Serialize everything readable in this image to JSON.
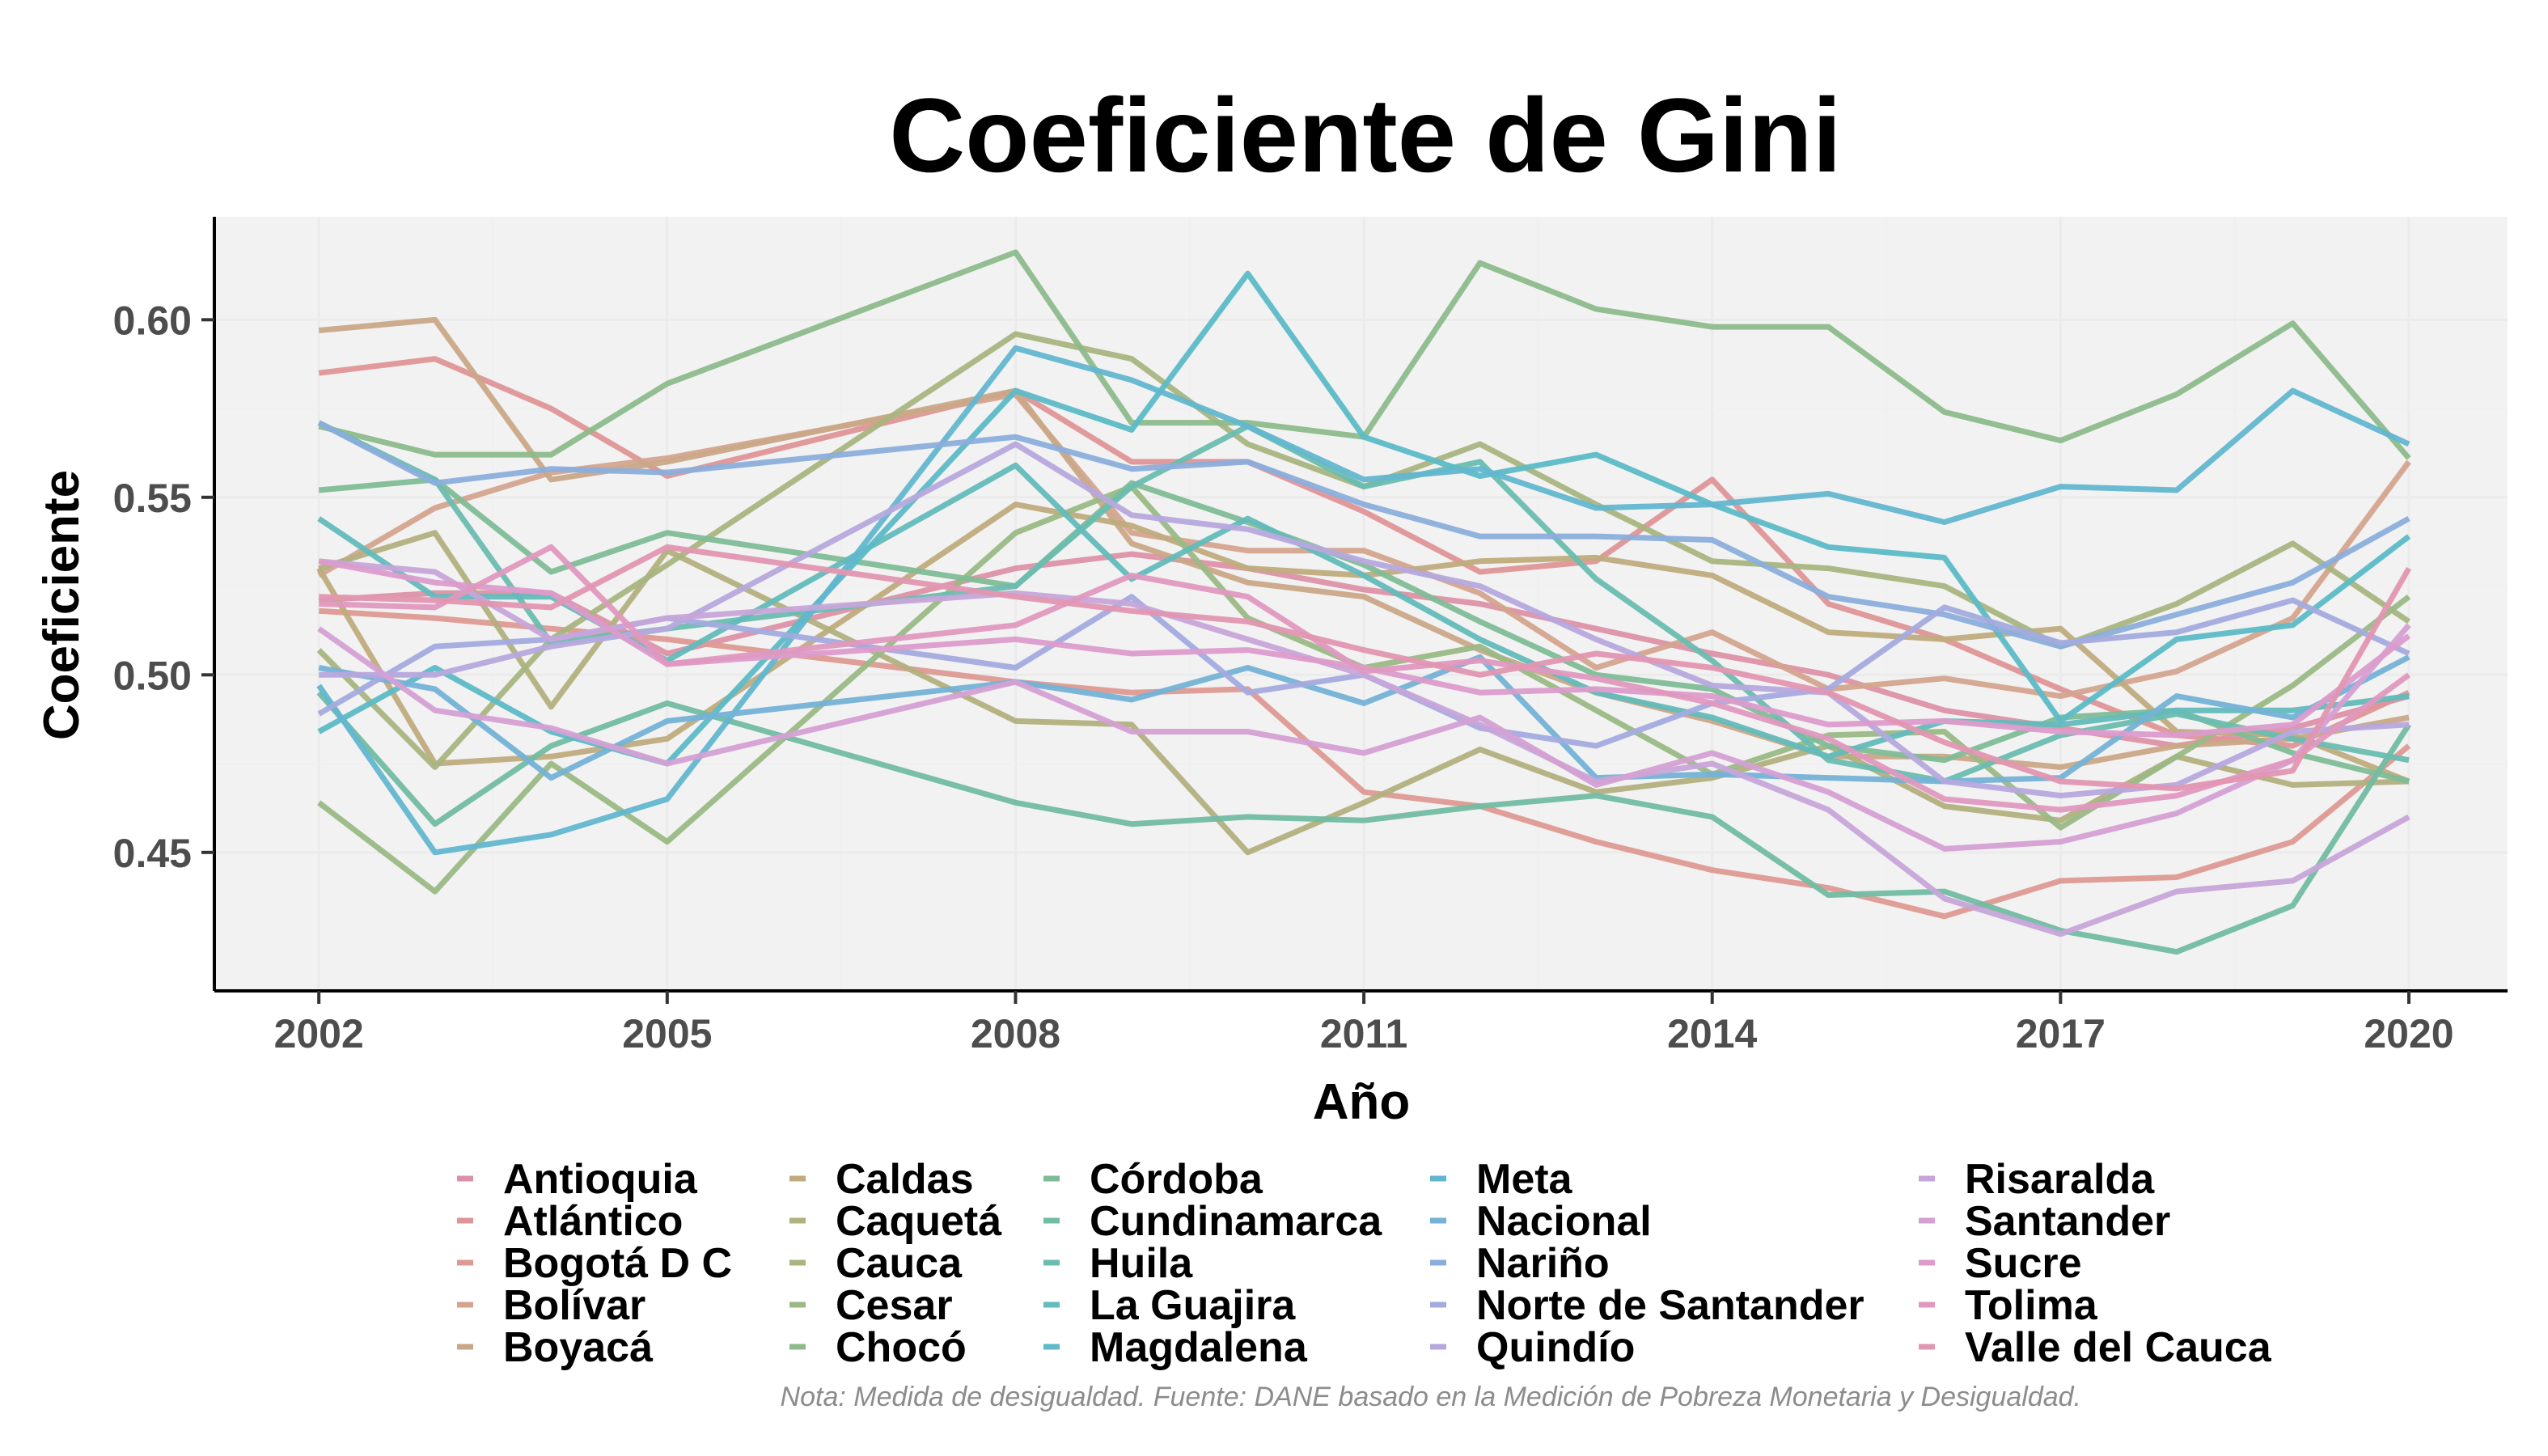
{
  "chart_data": {
    "type": "line",
    "title": "Coeficiente de Gini",
    "xlabel": "Año",
    "ylabel": "Coeficiente",
    "caption": "Nota: Medida de desigualdad. Fuente: DANE basado en la Medición de Pobreza Monetaria y Desigualdad.",
    "xlim": [
      2001.1,
      2020.85
    ],
    "ylim": [
      0.411,
      0.629
    ],
    "x_ticks": [
      2002,
      2005,
      2008,
      2011,
      2014,
      2017,
      2020
    ],
    "x_tick_labels": [
      "2002",
      "2005",
      "2008",
      "2011",
      "2014",
      "2017",
      "2020"
    ],
    "y_ticks": [
      0.45,
      0.5,
      0.55,
      0.6
    ],
    "y_tick_labels": [
      "0.45",
      "0.50",
      "0.55",
      "0.60"
    ],
    "grid": true,
    "legend_position": "bottom",
    "x": [
      2002,
      2003,
      2004,
      2005,
      2008,
      2009,
      2010,
      2011,
      2012,
      2013,
      2014,
      2015,
      2016,
      2017,
      2018,
      2019,
      2020
    ],
    "series": [
      {
        "name": "Antioquia",
        "color": "#dc91a6",
        "values": [
          0.521,
          0.523,
          0.523,
          0.506,
          0.53,
          0.534,
          0.53,
          0.524,
          0.52,
          0.513,
          0.506,
          0.5,
          0.49,
          0.485,
          0.48,
          0.485,
          0.494
        ]
      },
      {
        "name": "Atlántico",
        "color": "#df9597",
        "values": [
          0.585,
          0.589,
          0.575,
          0.556,
          0.58,
          0.56,
          0.56,
          0.546,
          0.529,
          0.532,
          0.555,
          0.52,
          0.51,
          0.496,
          0.483,
          0.48,
          0.495
        ]
      },
      {
        "name": "Bogotá D C",
        "color": "#dd9a92",
        "values": [
          0.518,
          0.516,
          0.513,
          0.51,
          0.498,
          0.495,
          0.496,
          0.467,
          0.463,
          0.453,
          0.445,
          0.44,
          0.432,
          0.442,
          0.443,
          0.453,
          0.48
        ]
      },
      {
        "name": "Bolívar",
        "color": "#d4a48f",
        "values": [
          0.528,
          0.547,
          0.557,
          0.561,
          0.579,
          0.54,
          0.535,
          0.535,
          0.523,
          0.502,
          0.512,
          0.496,
          0.499,
          0.494,
          0.501,
          0.516,
          0.56
        ]
      },
      {
        "name": "Boyacá",
        "color": "#c9a887",
        "values": [
          0.597,
          0.6,
          0.555,
          0.56,
          0.58,
          0.537,
          0.526,
          0.522,
          0.507,
          0.495,
          0.487,
          0.477,
          0.477,
          0.474,
          0.48,
          0.482,
          0.488
        ]
      },
      {
        "name": "Caldas",
        "color": "#bfac7d",
        "values": [
          0.53,
          0.475,
          0.477,
          0.482,
          0.548,
          0.542,
          0.53,
          0.528,
          0.532,
          0.533,
          0.528,
          0.512,
          0.51,
          0.513,
          0.484,
          0.483,
          0.47
        ]
      },
      {
        "name": "Caquetá",
        "color": "#b2b07e",
        "values": [
          0.53,
          0.54,
          0.491,
          0.535,
          0.487,
          0.486,
          0.45,
          0.464,
          0.479,
          0.467,
          0.471,
          0.48,
          0.463,
          0.459,
          0.477,
          0.469,
          0.47
        ]
      },
      {
        "name": "Cauca",
        "color": "#a8b57f",
        "values": [
          0.507,
          0.474,
          0.51,
          0.531,
          0.596,
          0.589,
          0.565,
          0.553,
          0.565,
          0.548,
          0.532,
          0.53,
          0.525,
          0.508,
          0.52,
          0.537,
          0.515
        ]
      },
      {
        "name": "Cesar",
        "color": "#9ab985",
        "values": [
          0.464,
          0.439,
          0.475,
          0.453,
          0.54,
          0.553,
          0.516,
          0.502,
          0.508,
          0.49,
          0.472,
          0.483,
          0.484,
          0.457,
          0.477,
          0.497,
          0.522
        ]
      },
      {
        "name": "Chocó",
        "color": "#8dba8b",
        "values": [
          0.57,
          0.562,
          0.562,
          0.582,
          0.619,
          0.571,
          0.571,
          0.567,
          0.616,
          0.603,
          0.598,
          0.598,
          0.574,
          0.566,
          0.579,
          0.599,
          0.561
        ]
      },
      {
        "name": "Córdoba",
        "color": "#7fbc96",
        "values": [
          0.552,
          0.555,
          0.529,
          0.54,
          0.525,
          0.554,
          0.543,
          0.531,
          0.515,
          0.5,
          0.496,
          0.48,
          0.476,
          0.488,
          0.49,
          0.478,
          0.47
        ]
      },
      {
        "name": "Cundinamarca",
        "color": "#72bca2",
        "values": [
          0.495,
          0.458,
          0.48,
          0.492,
          0.464,
          0.458,
          0.46,
          0.459,
          0.463,
          0.466,
          0.46,
          0.438,
          0.439,
          0.428,
          0.422,
          0.435,
          0.486
        ]
      },
      {
        "name": "Huila",
        "color": "#6abcb0",
        "values": [
          0.571,
          0.555,
          0.509,
          0.513,
          0.525,
          0.553,
          0.57,
          0.553,
          0.56,
          0.527,
          0.504,
          0.476,
          0.47,
          0.483,
          0.489,
          0.482,
          0.476
        ]
      },
      {
        "name": "La Guajira",
        "color": "#63bbbb",
        "values": [
          0.544,
          0.522,
          0.522,
          0.504,
          0.559,
          0.527,
          0.544,
          0.528,
          0.51,
          0.495,
          0.488,
          0.477,
          0.487,
          0.486,
          0.49,
          0.49,
          0.494
        ]
      },
      {
        "name": "Magdalena",
        "color": "#5cbbc6",
        "values": [
          0.484,
          0.502,
          0.484,
          0.475,
          0.58,
          0.569,
          0.613,
          0.567,
          0.556,
          0.562,
          0.548,
          0.536,
          0.533,
          0.487,
          0.51,
          0.514,
          0.539
        ]
      },
      {
        "name": "Meta",
        "color": "#62b6d0",
        "values": [
          0.497,
          0.45,
          0.455,
          0.465,
          0.592,
          0.583,
          0.57,
          0.555,
          0.558,
          0.547,
          0.548,
          0.551,
          0.543,
          0.553,
          0.552,
          0.58,
          0.565
        ]
      },
      {
        "name": "Nacional",
        "color": "#74b2d6",
        "values": [
          0.502,
          0.496,
          0.471,
          0.487,
          0.498,
          0.493,
          0.502,
          0.492,
          0.505,
          0.471,
          0.472,
          0.471,
          0.47,
          0.471,
          0.494,
          0.488,
          0.505
        ]
      },
      {
        "name": "Nariño",
        "color": "#8aaedb",
        "values": [
          0.571,
          0.554,
          0.558,
          0.557,
          0.567,
          0.558,
          0.56,
          0.548,
          0.539,
          0.539,
          0.538,
          0.522,
          0.517,
          0.508,
          0.517,
          0.526,
          0.544
        ]
      },
      {
        "name": "Norte de Santander",
        "color": "#a3abde",
        "values": [
          0.489,
          0.508,
          0.51,
          0.516,
          0.502,
          0.522,
          0.495,
          0.5,
          0.485,
          0.48,
          0.492,
          0.496,
          0.519,
          0.509,
          0.512,
          0.521,
          0.506
        ]
      },
      {
        "name": "Quindío",
        "color": "#b6a8dd",
        "values": [
          0.5,
          0.5,
          0.508,
          0.513,
          0.565,
          0.545,
          0.541,
          0.532,
          0.525,
          0.51,
          0.497,
          0.495,
          0.47,
          0.466,
          0.469,
          0.484,
          0.486
        ]
      },
      {
        "name": "Risaralda",
        "color": "#c6a5d9",
        "values": [
          0.532,
          0.529,
          0.51,
          0.516,
          0.523,
          0.52,
          0.51,
          0.5,
          0.486,
          0.47,
          0.475,
          0.462,
          0.437,
          0.427,
          0.439,
          0.442,
          0.46
        ]
      },
      {
        "name": "Santander",
        "color": "#d4a0d4",
        "values": [
          0.513,
          0.49,
          0.485,
          0.475,
          0.498,
          0.484,
          0.484,
          0.478,
          0.488,
          0.469,
          0.478,
          0.467,
          0.451,
          0.453,
          0.461,
          0.476,
          0.514
        ]
      },
      {
        "name": "Sucre",
        "color": "#dc9bcb",
        "values": [
          0.532,
          0.526,
          0.523,
          0.503,
          0.51,
          0.506,
          0.507,
          0.502,
          0.495,
          0.496,
          0.494,
          0.486,
          0.487,
          0.484,
          0.483,
          0.486,
          0.511
        ]
      },
      {
        "name": "Tolima",
        "color": "#e098bf",
        "values": [
          0.52,
          0.519,
          0.536,
          0.503,
          0.514,
          0.528,
          0.522,
          0.501,
          0.504,
          0.499,
          0.492,
          0.482,
          0.465,
          0.462,
          0.466,
          0.476,
          0.5
        ]
      },
      {
        "name": "Valle del Cauca",
        "color": "#e196b1",
        "values": [
          0.522,
          0.521,
          0.519,
          0.536,
          0.522,
          0.518,
          0.515,
          0.507,
          0.5,
          0.506,
          0.502,
          0.495,
          0.481,
          0.47,
          0.468,
          0.473,
          0.53
        ]
      }
    ]
  }
}
